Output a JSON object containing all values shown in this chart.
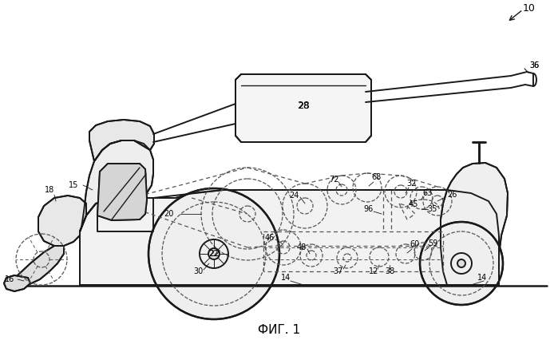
{
  "title": "ФИГ. 1",
  "bg_color": "#ffffff",
  "lc": "#1a1a1a",
  "dc": "#555555",
  "lw_main": 1.4,
  "lw_thin": 0.9,
  "lw_body": 1.5
}
